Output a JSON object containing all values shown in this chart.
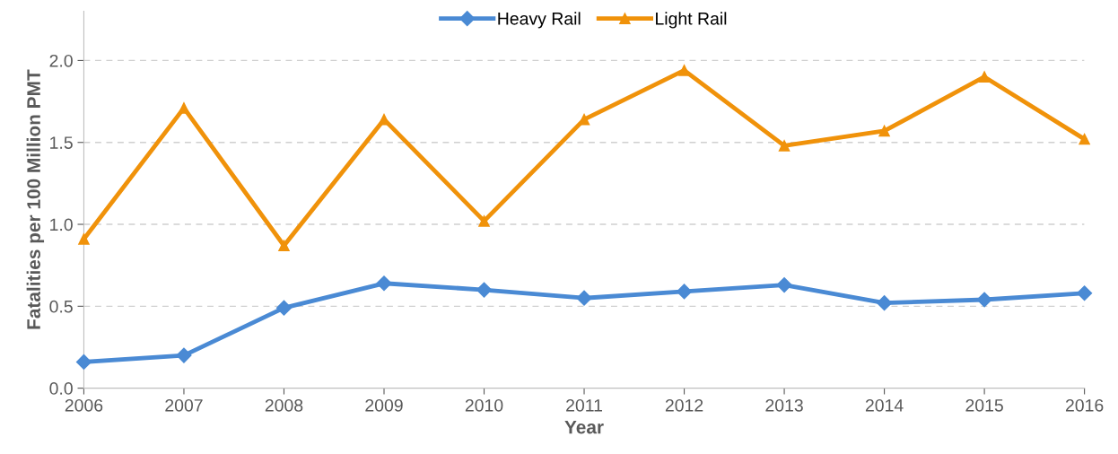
{
  "chart_data": {
    "type": "line",
    "xlabel": "Year",
    "ylabel": "Fatalities per 100 Million PMT",
    "x": [
      2006,
      2007,
      2008,
      2009,
      2010,
      2011,
      2012,
      2013,
      2014,
      2015,
      2016
    ],
    "series": [
      {
        "name": "Heavy Rail",
        "color": "#4a8ad4",
        "marker": "diamond",
        "values": [
          0.16,
          0.2,
          0.49,
          0.64,
          0.6,
          0.55,
          0.59,
          0.63,
          0.52,
          0.54,
          0.58
        ]
      },
      {
        "name": "Light Rail",
        "color": "#f0920a",
        "marker": "triangle",
        "values": [
          0.91,
          1.71,
          0.87,
          1.64,
          1.02,
          1.64,
          1.94,
          1.48,
          1.57,
          1.9,
          1.52
        ]
      }
    ],
    "xlim": [
      2006,
      2016
    ],
    "xticks": [
      2006,
      2007,
      2008,
      2009,
      2010,
      2011,
      2012,
      2013,
      2014,
      2015,
      2016
    ],
    "ylim": [
      0,
      2.3
    ],
    "yticks": [
      {
        "value": 0,
        "label": "0.0"
      },
      {
        "value": 0.5,
        "label": "0.5"
      },
      {
        "value": 1.0,
        "label": "1.0"
      },
      {
        "value": 1.5,
        "label": "1.5"
      },
      {
        "value": 2.0,
        "label": "2.0"
      }
    ],
    "grid": "y",
    "legend": "top",
    "line_style": "solid"
  }
}
